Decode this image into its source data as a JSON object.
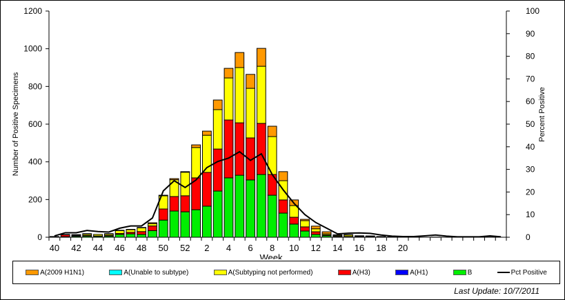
{
  "chart_data": {
    "type": "bar",
    "stacked": true,
    "xlabel": "Week",
    "ylabel": "Number of Positive Specimens",
    "y2label": "Percent Positive",
    "ylim": [
      0,
      1200
    ],
    "y2lim": [
      0,
      100
    ],
    "yticks": [
      0,
      200,
      400,
      600,
      800,
      1000,
      1200
    ],
    "y2ticks": [
      0,
      10,
      20,
      30,
      40,
      50,
      60,
      70,
      80,
      90,
      100
    ],
    "xtick_labels": [
      "40",
      "42",
      "44",
      "46",
      "48",
      "50",
      "52",
      "2",
      "4",
      "6",
      "8",
      "10",
      "12",
      "14",
      "16",
      "18",
      "20"
    ],
    "categories": [
      40,
      41,
      42,
      43,
      44,
      45,
      46,
      47,
      48,
      49,
      50,
      51,
      52,
      1,
      2,
      3,
      4,
      5,
      6,
      7,
      8,
      9,
      10,
      11,
      12,
      13,
      14,
      15,
      16,
      17,
      18,
      19,
      20,
      21,
      22,
      23,
      24,
      25,
      26,
      27,
      28,
      29
    ],
    "series": [
      {
        "name": "B",
        "color": "#00ee00",
        "values": [
          2,
          3,
          5,
          6,
          5,
          6,
          15,
          18,
          15,
          35,
          91,
          139,
          135,
          146,
          165,
          245,
          315,
          329,
          304,
          333,
          223,
          128,
          70,
          33,
          15,
          8,
          3,
          2,
          2,
          2,
          1,
          1,
          0,
          0,
          0,
          1,
          0,
          0,
          0,
          0,
          1,
          0
        ]
      },
      {
        "name": "A(H1)",
        "color": "#0000ff",
        "values": [
          0,
          0,
          0,
          0,
          0,
          0,
          0,
          0,
          0,
          0,
          0,
          0,
          0,
          0,
          0,
          0,
          0,
          0,
          0,
          0,
          0,
          0,
          0,
          0,
          0,
          0,
          0,
          0,
          0,
          0,
          0,
          0,
          0,
          0,
          0,
          0,
          0,
          0,
          0,
          0,
          0,
          0
        ]
      },
      {
        "name": "A(H3)",
        "color": "#ff0000",
        "values": [
          1,
          10,
          3,
          4,
          2,
          4,
          5,
          8,
          15,
          25,
          59,
          77,
          85,
          169,
          179,
          223,
          307,
          278,
          223,
          271,
          110,
          70,
          36,
          22,
          14,
          4,
          2,
          2,
          2,
          1,
          1,
          0,
          0,
          0,
          0,
          0,
          0,
          0,
          0,
          0,
          0,
          0
        ]
      },
      {
        "name": "A(Subtyping not performed)",
        "color": "#ffff00",
        "values": [
          1,
          2,
          4,
          7,
          8,
          7,
          15,
          14,
          20,
          12,
          70,
          89,
          125,
          161,
          197,
          209,
          223,
          293,
          263,
          303,
          201,
          102,
          62,
          33,
          16,
          6,
          5,
          8,
          3,
          3,
          2,
          1,
          0,
          0,
          0,
          0,
          0,
          0,
          0,
          0,
          0,
          0
        ]
      },
      {
        "name": "A(Unable to subtype)",
        "color": "#00ffff",
        "values": [
          0,
          0,
          0,
          0,
          0,
          0,
          0,
          0,
          0,
          0,
          0,
          0,
          0,
          0,
          0,
          0,
          0,
          0,
          0,
          0,
          0,
          0,
          0,
          0,
          0,
          0,
          0,
          0,
          0,
          0,
          0,
          0,
          0,
          0,
          0,
          0,
          0,
          0,
          0,
          0,
          0,
          0
        ]
      },
      {
        "name": "A(2009 H1N1)",
        "color": "#ff9900",
        "values": [
          0,
          0,
          2,
          2,
          0,
          2,
          2,
          2,
          2,
          5,
          3,
          6,
          3,
          14,
          22,
          51,
          51,
          80,
          74,
          95,
          55,
          48,
          30,
          7,
          14,
          11,
          3,
          2,
          1,
          1,
          0,
          0,
          0,
          0,
          0,
          0,
          0,
          0,
          0,
          0,
          0,
          0
        ]
      }
    ],
    "line": {
      "name": "Pct Positive",
      "color": "#000000",
      "axis": "right",
      "values": [
        0.6,
        2,
        2,
        3,
        2.5,
        2.3,
        4,
        5,
        5,
        8.5,
        20.5,
        25,
        22,
        25.3,
        30.8,
        33.5,
        35,
        37.8,
        34,
        36.9,
        27.7,
        21,
        15,
        10,
        6.5,
        4,
        1.5,
        1.8,
        1.9,
        1.7,
        1,
        0.5,
        0.3,
        0.3,
        0.6,
        1,
        0.5,
        0.2,
        0.2,
        0.2,
        0.6,
        0.2
      ]
    },
    "legend": [
      "A(2009 H1N1)",
      "A(Unable to subtype)",
      "A(Subtyping not performed)",
      "A(H3)",
      "A(H1)",
      "B",
      "Pct Positive"
    ],
    "legend_placement": "bottom",
    "grid": false
  },
  "footer": {
    "last_update": "Last Update: 10/7/2011"
  }
}
